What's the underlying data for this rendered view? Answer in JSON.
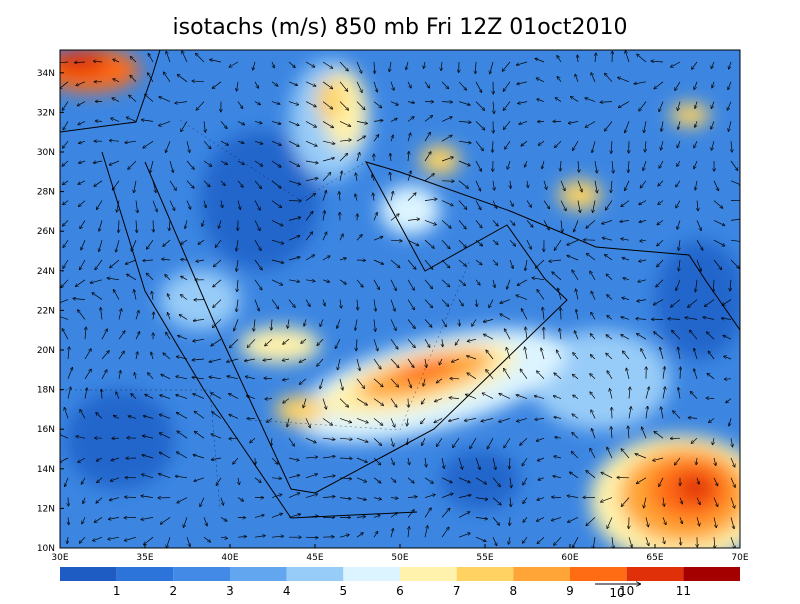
{
  "header": {
    "title": "isotachs (m/s) 850 mb Fri 12Z 01oct2010"
  },
  "map": {
    "lat_labels": [
      "10N",
      "12N",
      "14N",
      "16N",
      "18N",
      "20N",
      "22N",
      "24N",
      "26N",
      "28N",
      "30N",
      "32N",
      "34N"
    ],
    "lon_labels": [
      "30E",
      "35E",
      "40E",
      "45E",
      "50E",
      "55E",
      "60E",
      "65E",
      "70E"
    ]
  },
  "colorbar": {
    "labels": [
      1,
      2,
      3,
      4,
      5,
      6,
      7,
      8,
      9,
      10,
      11
    ],
    "colors": [
      "#1e5cc4",
      "#2c74da",
      "#428ae6",
      "#63a6f0",
      "#98ccf8",
      "#dcf4ff",
      "#fff2ac",
      "#ffd262",
      "#ffa436",
      "#ff6c14",
      "#e0300a",
      "#a40000"
    ]
  },
  "reference_vector": {
    "label": "10"
  }
}
